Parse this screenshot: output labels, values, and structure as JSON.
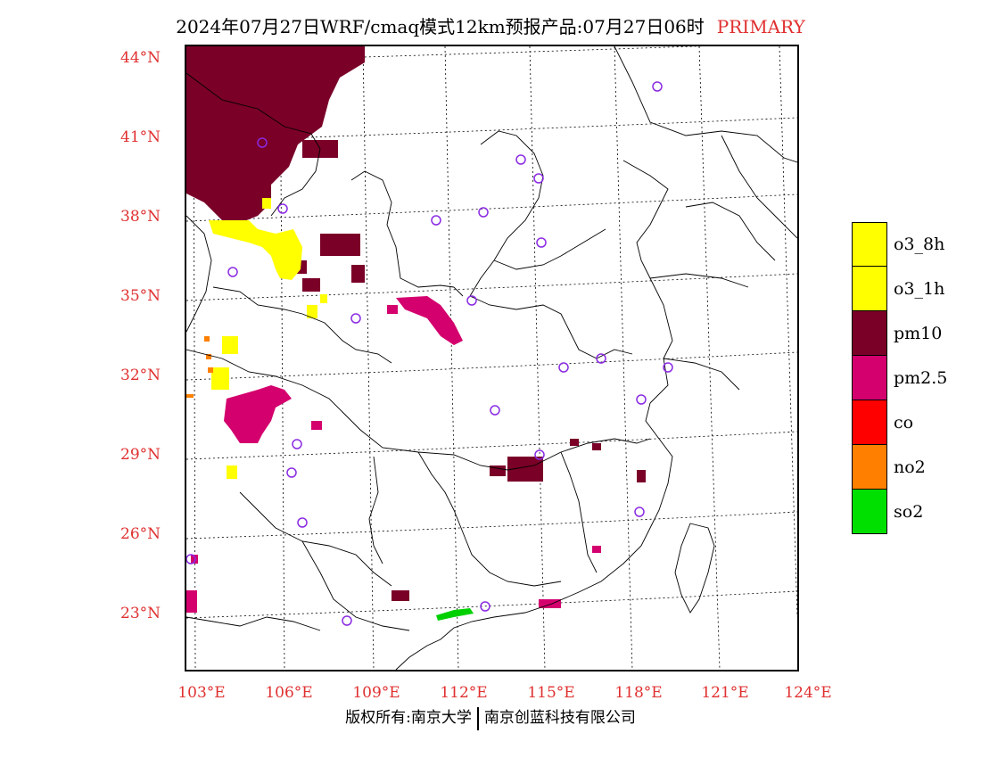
{
  "title": {
    "main": "2024年07月27日WRF/cmaq模式12km预报产品:07月27日06时",
    "tag": "PRIMARY"
  },
  "lat_labels": [
    "44°N",
    "41°N",
    "38°N",
    "35°N",
    "32°N",
    "29°N",
    "26°N",
    "23°N"
  ],
  "lon_labels": [
    "103°E",
    "106°E",
    "109°E",
    "112°E",
    "115°E",
    "118°E",
    "121°E",
    "124°E"
  ],
  "legend": [
    {
      "label": "o3_8h",
      "color": "#ffff00"
    },
    {
      "label": "o3_1h",
      "color": "#ffff00"
    },
    {
      "label": "pm10",
      "color": "#7a0028"
    },
    {
      "label": "pm2.5",
      "color": "#d4006e"
    },
    {
      "label": "co",
      "color": "#ff0000"
    },
    {
      "label": "no2",
      "color": "#ff8000"
    },
    {
      "label": "so2",
      "color": "#00e000"
    }
  ],
  "footer": {
    "left": "版权所有:南京大学",
    "right": "南京创蓝科技有限公司"
  },
  "colors": {
    "title_tag": "#e03030",
    "axis_labels": "#e03030",
    "station_ring": "#8a2be2"
  }
}
